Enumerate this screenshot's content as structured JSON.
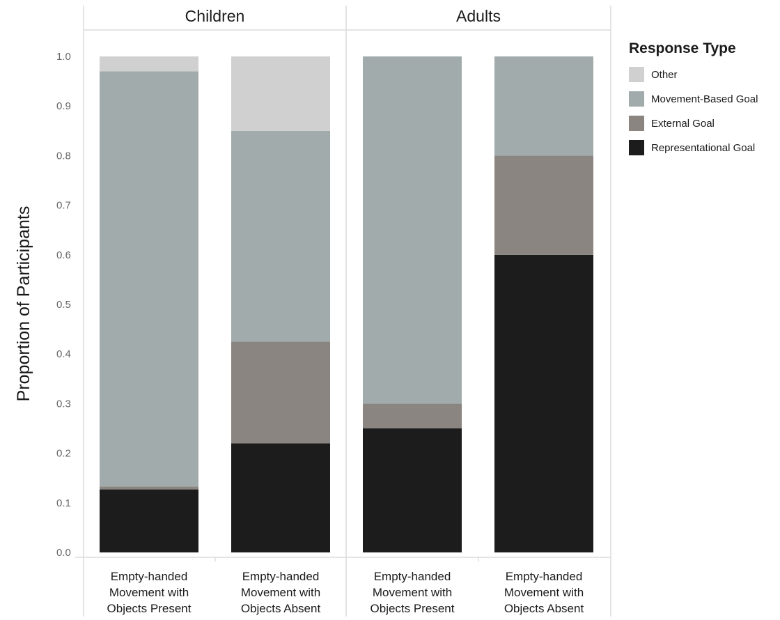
{
  "chart_data": {
    "type": "bar",
    "stacked": true,
    "ylabel": "Proportion of Participants",
    "ylim": [
      0,
      1.0
    ],
    "yticks": [
      "0.0",
      "0.1",
      "0.2",
      "0.3",
      "0.4",
      "0.5",
      "0.6",
      "0.7",
      "0.8",
      "0.9",
      "1.0"
    ],
    "grid": false,
    "legend": {
      "title": "Response Type",
      "placement": "right"
    },
    "panels": [
      {
        "name": "Children",
        "categories": [
          [
            "Empty-handed",
            "Movement with",
            "Objects Present"
          ],
          [
            "Empty-handed",
            "Movement with",
            "Objects Absent"
          ]
        ]
      },
      {
        "name": "Adults",
        "categories": [
          [
            "Empty-handed",
            "Movement with",
            "Objects Present"
          ],
          [
            "Empty-handed",
            "Movement with",
            "Objects Absent"
          ]
        ]
      }
    ],
    "series": [
      {
        "name": "Representational Goal",
        "color": "#1c1c1c",
        "values": [
          0.127,
          0.22,
          0.25,
          0.6
        ]
      },
      {
        "name": "External Goal",
        "color": "#8a8580",
        "values": [
          0.006,
          0.205,
          0.05,
          0.2
        ]
      },
      {
        "name": "Movement-Based Goal",
        "color": "#a2abab",
        "values": [
          0.837,
          0.425,
          0.7,
          0.2
        ]
      },
      {
        "name": "Other",
        "color": "#d0d0d0",
        "values": [
          0.03,
          0.15,
          0.0,
          0.0
        ]
      }
    ],
    "legend_order": [
      "Other",
      "Movement-Based Goal",
      "External Goal",
      "Representational Goal"
    ]
  }
}
